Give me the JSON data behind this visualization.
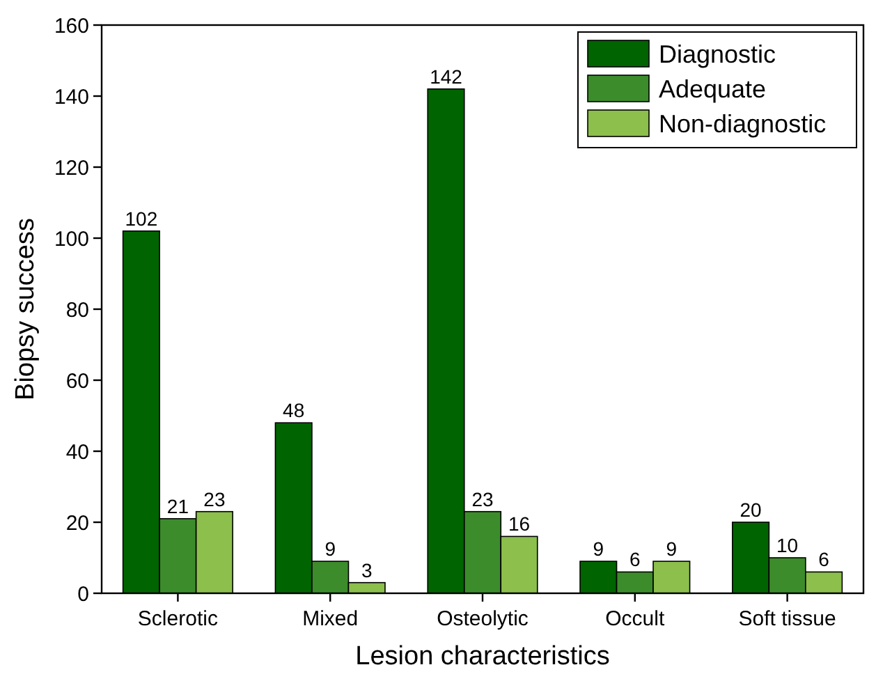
{
  "chart_data": {
    "type": "bar",
    "xlabel": "Lesion characteristics",
    "ylabel": "Biopsy success",
    "categories": [
      "Sclerotic",
      "Mixed",
      "Osteolytic",
      "Occult",
      "Soft tissue"
    ],
    "series": [
      {
        "name": "Diagnostic",
        "color": "#006400",
        "values": [
          102,
          48,
          142,
          9,
          20
        ]
      },
      {
        "name": "Adequate",
        "color": "#3c8c2c",
        "values": [
          21,
          9,
          23,
          6,
          10
        ]
      },
      {
        "name": "Non-diagnostic",
        "color": "#8cbf4c",
        "values": [
          23,
          3,
          16,
          9,
          6
        ]
      }
    ],
    "ylim": [
      0,
      160
    ],
    "yticks": [
      0,
      20,
      40,
      60,
      80,
      100,
      120,
      140,
      160
    ],
    "data_labels": true,
    "legend": "top right"
  }
}
